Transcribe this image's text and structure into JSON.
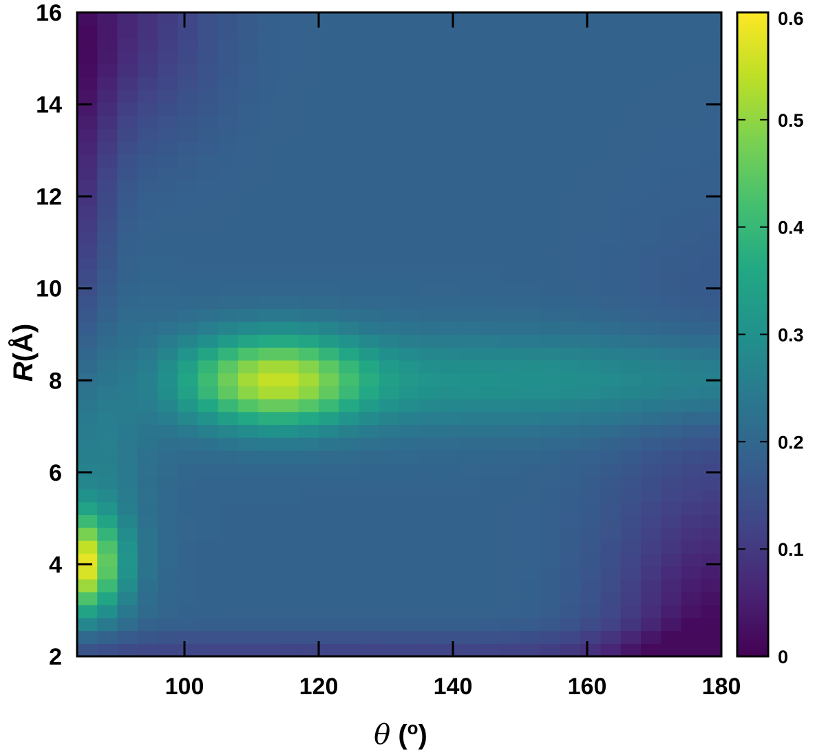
{
  "chart_data": {
    "type": "heatmap",
    "title": "",
    "xlabel": {
      "symbol": "θ",
      "unit_open": " (",
      "unit": "o",
      "unit_close": ")"
    },
    "ylabel": {
      "symbol": "R",
      "unit": "(Å)"
    },
    "xlim": [
      84,
      180
    ],
    "ylim": [
      2,
      16
    ],
    "x_ticks": [
      {
        "value": 100,
        "label": "100"
      },
      {
        "value": 120,
        "label": "120"
      },
      {
        "value": 140,
        "label": "140"
      },
      {
        "value": 160,
        "label": "160"
      },
      {
        "value": 180,
        "label": "180"
      }
    ],
    "y_ticks": [
      {
        "value": 2,
        "label": "2"
      },
      {
        "value": 4,
        "label": "4"
      },
      {
        "value": 6,
        "label": "6"
      },
      {
        "value": 8,
        "label": "8"
      },
      {
        "value": 10,
        "label": "10"
      },
      {
        "value": 12,
        "label": "12"
      },
      {
        "value": 14,
        "label": "14"
      },
      {
        "value": 16,
        "label": "16"
      }
    ],
    "colorbar": {
      "range": [
        0,
        0.6
      ],
      "ticks": [
        {
          "value": 0,
          "label": "0"
        },
        {
          "value": 0.1,
          "label": "0.1"
        },
        {
          "value": 0.2,
          "label": "0.2"
        },
        {
          "value": 0.3,
          "label": "0.3"
        },
        {
          "value": 0.4,
          "label": "0.4"
        },
        {
          "value": 0.5,
          "label": "0.5"
        },
        {
          "value": 0.6,
          "label": "0.6"
        }
      ],
      "colormap": "viridis",
      "stops": [
        "#440154",
        "#482475",
        "#414487",
        "#355f8d",
        "#2a788e",
        "#21918c",
        "#22a884",
        "#44bf70",
        "#7ad151",
        "#bddf26",
        "#fde725"
      ]
    },
    "grid": {
      "theta_start": 84,
      "theta_step": 3,
      "theta_count": 32,
      "r_start": 2,
      "r_step": 0.28,
      "r_count": 50,
      "z_values": "estimated smooth field: background ≈0.19 plateau, peak ≈0.55 at (θ≈112°, R≈8 Å), peak ≈0.56 at (θ≈84°, R≈4 Å), low ≈0.03–0.06 near the left column and corners"
    }
  }
}
